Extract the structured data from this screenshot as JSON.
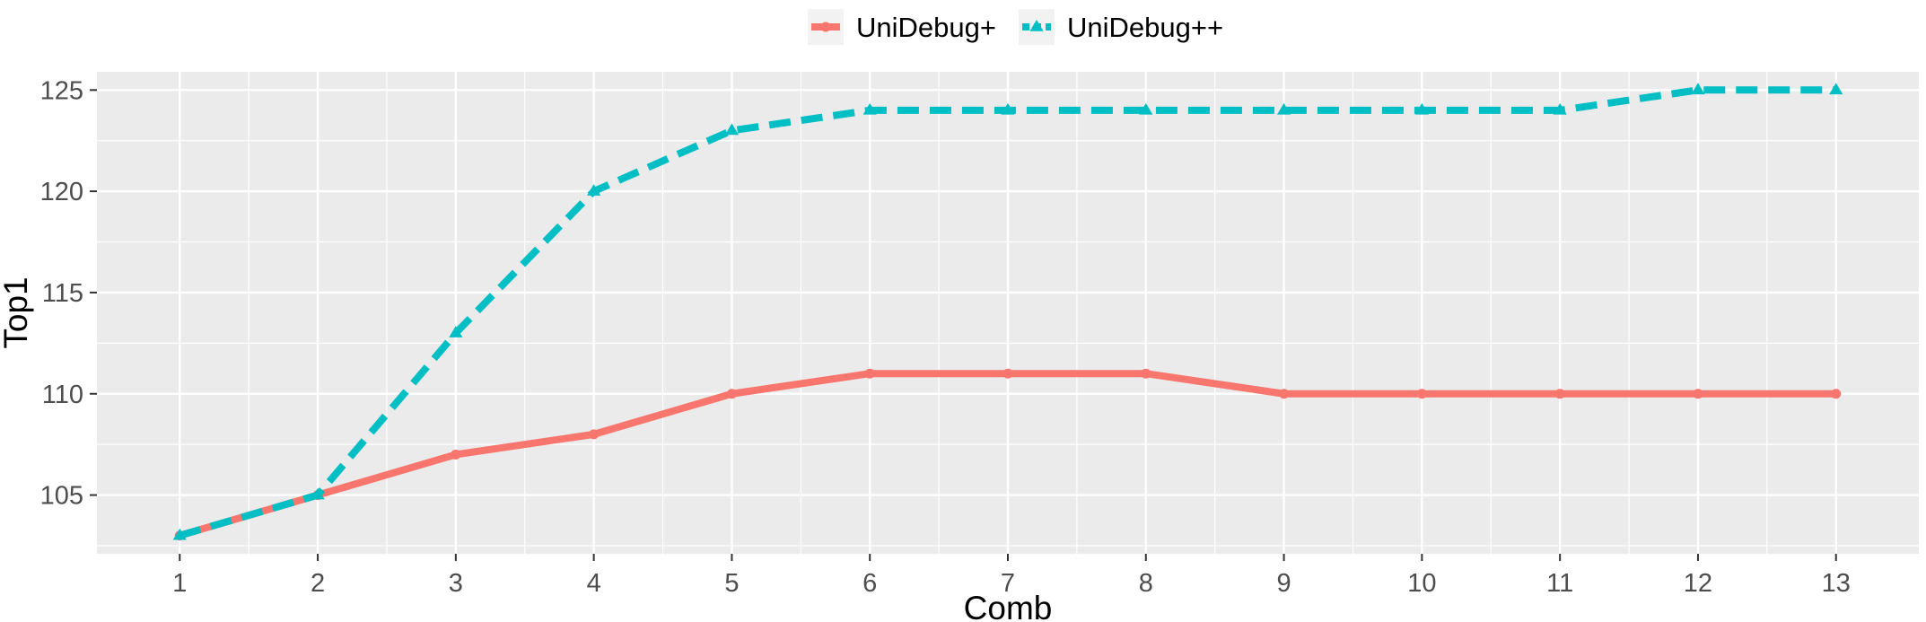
{
  "chart_data": {
    "type": "line",
    "title": "",
    "xlabel": "Comb",
    "ylabel": "Top1",
    "x": [
      1,
      2,
      3,
      4,
      5,
      6,
      7,
      8,
      9,
      10,
      11,
      12,
      13
    ],
    "xlim": [
      0.4,
      13.6
    ],
    "ylim": [
      102.1,
      125.9
    ],
    "yticks": [
      105,
      110,
      115,
      120,
      125
    ],
    "grid": true,
    "legend_position": "top",
    "background": "#EBEBEB",
    "series": [
      {
        "name": "UniDebug+",
        "color": "#F8766D",
        "line": "solid",
        "marker": "circle",
        "values": [
          103,
          105,
          107,
          108,
          110,
          111,
          111,
          111,
          110,
          110,
          110,
          110,
          110
        ]
      },
      {
        "name": "UniDebug++",
        "color": "#00BFC4",
        "line": "dashed",
        "marker": "triangle",
        "values": [
          103,
          105,
          113,
          120,
          123,
          124,
          124,
          124,
          124,
          124,
          124,
          125,
          125
        ]
      }
    ]
  }
}
